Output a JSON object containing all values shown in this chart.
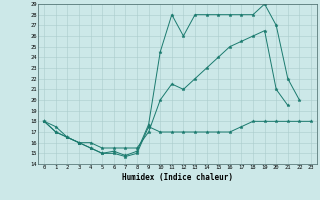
{
  "x": [
    0,
    1,
    2,
    3,
    4,
    5,
    6,
    7,
    8,
    9,
    10,
    11,
    12,
    13,
    14,
    15,
    16,
    17,
    18,
    19,
    20,
    21,
    22,
    23
  ],
  "line1": [
    18,
    17,
    16.5,
    16,
    15.5,
    15,
    15,
    14.7,
    15,
    17.5,
    17,
    17,
    17,
    17,
    17,
    17,
    17,
    17.5,
    18,
    18,
    18,
    18,
    18,
    18
  ],
  "line2": [
    18,
    17,
    16.5,
    16,
    16,
    15.5,
    15.5,
    15.5,
    15.5,
    17,
    20,
    21.5,
    21,
    22,
    23,
    24,
    25,
    25.5,
    26,
    26.5,
    21,
    19.5,
    null,
    null
  ],
  "line3": [
    18,
    17.5,
    16.5,
    16,
    15.5,
    15,
    15.2,
    14.8,
    15.2,
    17.7,
    24.5,
    28,
    26,
    28,
    28,
    28,
    28,
    28,
    28,
    29,
    27,
    22,
    20,
    null
  ],
  "xlabel": "Humidex (Indice chaleur)",
  "ylim": [
    14,
    29
  ],
  "xlim": [
    -0.5,
    23.5
  ],
  "yticks": [
    14,
    15,
    16,
    17,
    18,
    19,
    20,
    21,
    22,
    23,
    24,
    25,
    26,
    27,
    28,
    29
  ],
  "xticks": [
    0,
    1,
    2,
    3,
    4,
    5,
    6,
    7,
    8,
    9,
    10,
    11,
    12,
    13,
    14,
    15,
    16,
    17,
    18,
    19,
    20,
    21,
    22,
    23
  ],
  "line_color": "#1a7a6e",
  "bg_color": "#cce8e8",
  "grid_color": "#aacccc",
  "fig_bg": "#cce8e8"
}
